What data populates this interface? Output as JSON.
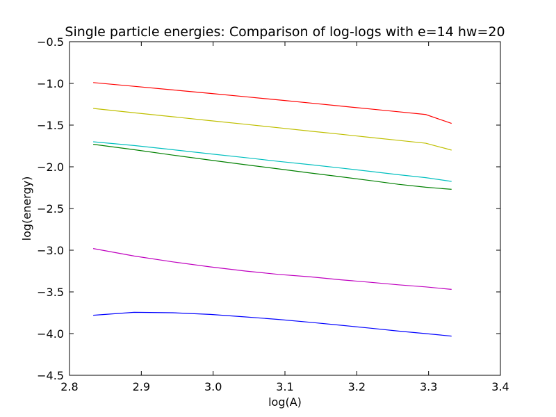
{
  "chart_data": {
    "type": "line",
    "title": "Single particle energies: Comparison of log-logs with e=14 hw=20",
    "xlabel": "log(A)",
    "ylabel": "log(energy)",
    "xlim": [
      2.8,
      3.4
    ],
    "ylim": [
      -4.5,
      -0.5
    ],
    "xticks": [
      2.8,
      2.9,
      3.0,
      3.1,
      3.2,
      3.3,
      3.4
    ],
    "xtick_labels": [
      "2.8",
      "2.9",
      "3.0",
      "3.1",
      "3.2",
      "3.3",
      "3.4"
    ],
    "yticks": [
      -0.5,
      -1.0,
      -1.5,
      -2.0,
      -2.5,
      -3.0,
      -3.5,
      -4.0,
      -4.5
    ],
    "ytick_labels": [
      "−0.5",
      "−1.0",
      "−1.5",
      "−2.0",
      "−2.5",
      "−3.0",
      "−3.5",
      "−4.0",
      "−4.5"
    ],
    "grid": false,
    "legend": false,
    "x": [
      2.833,
      2.89,
      2.944,
      2.996,
      3.045,
      3.091,
      3.136,
      3.178,
      3.219,
      3.258,
      3.296,
      3.332
    ],
    "series": [
      {
        "color": "#ff0000",
        "values": [
          -0.99,
          -1.035,
          -1.078,
          -1.12,
          -1.16,
          -1.198,
          -1.236,
          -1.272,
          -1.307,
          -1.34,
          -1.373,
          -1.48
        ]
      },
      {
        "color": "#bfbf00",
        "values": [
          -1.3,
          -1.352,
          -1.4,
          -1.447,
          -1.49,
          -1.532,
          -1.573,
          -1.61,
          -1.648,
          -1.683,
          -1.717,
          -1.8
        ]
      },
      {
        "color": "#00bfbf",
        "values": [
          -1.7,
          -1.745,
          -1.795,
          -1.845,
          -1.89,
          -1.935,
          -1.975,
          -2.015,
          -2.055,
          -2.095,
          -2.13,
          -2.175
        ]
      },
      {
        "color": "#008000",
        "values": [
          -1.73,
          -1.795,
          -1.86,
          -1.92,
          -1.975,
          -2.025,
          -2.075,
          -2.12,
          -2.165,
          -2.21,
          -2.245,
          -2.27
        ]
      },
      {
        "color": "#bf00bf",
        "values": [
          -2.98,
          -3.07,
          -3.14,
          -3.2,
          -3.25,
          -3.29,
          -3.32,
          -3.355,
          -3.385,
          -3.415,
          -3.44,
          -3.47
        ]
      },
      {
        "color": "#0000ff",
        "values": [
          -3.78,
          -3.745,
          -3.75,
          -3.77,
          -3.8,
          -3.83,
          -3.865,
          -3.9,
          -3.935,
          -3.97,
          -4.0,
          -4.03
        ]
      }
    ]
  }
}
